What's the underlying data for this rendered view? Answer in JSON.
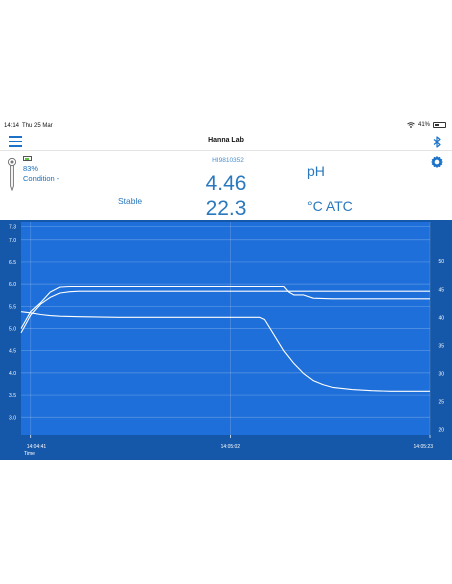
{
  "status_bar": {
    "time": "14:14",
    "date": "Thu 25 Mar",
    "battery": "41%",
    "battery_level": 0.41
  },
  "nav": {
    "title": "Hanna Lab",
    "menu_icon": "hamburger-menu-icon",
    "bluetooth_icon": "bluetooth-icon"
  },
  "probe": {
    "percent": "83%",
    "condition": "Condition -",
    "battery_level": 0.83,
    "battery_color": "#5ac43a"
  },
  "device_id": "HI9810352",
  "reading": {
    "value": "4.46",
    "unit": "pH",
    "stability": "Stable"
  },
  "temperature": {
    "value": "22.3",
    "unit": "°C ATC"
  },
  "colors": {
    "accent": "#2a78be",
    "chart_bg": "#1e6fd9",
    "chart_frame": "#1557a8"
  },
  "chart_data": {
    "type": "line",
    "xlabel": "Time",
    "x_ticks": [
      "14:04:41",
      "14:05:02",
      "14:05:23"
    ],
    "x_range": [
      0,
      42
    ],
    "y_left": {
      "range": [
        2.6,
        7.4
      ],
      "ticks": [
        "7.3",
        "7.0",
        "6.5",
        "6.0",
        "5.5",
        "5.0",
        "4.5",
        "4.0",
        "3.5",
        "3.0",
        "2.5"
      ]
    },
    "y_right": {
      "range": [
        19,
        57
      ],
      "ticks": [
        "50",
        "45",
        "40",
        "35",
        "30",
        "25",
        "20"
      ]
    },
    "grid": true,
    "series": [
      {
        "axis": "left",
        "x": [
          0,
          0.5,
          1,
          2,
          3,
          4,
          5,
          6,
          8,
          12,
          16,
          20,
          24,
          28,
          32,
          36,
          38,
          40,
          42
        ],
        "y": [
          4.9,
          5.1,
          5.3,
          5.55,
          5.7,
          5.8,
          5.83,
          5.84,
          5.84,
          5.84,
          5.84,
          5.84,
          5.84,
          5.84,
          5.84,
          5.84,
          5.84,
          5.84,
          5.84
        ]
      },
      {
        "axis": "right",
        "x": [
          0,
          0.5,
          1,
          2,
          3,
          4,
          5,
          6,
          8,
          10,
          15,
          20,
          25,
          27,
          27.5,
          28,
          29,
          30,
          32,
          34,
          36,
          38,
          40,
          42
        ],
        "y": [
          38,
          39.5,
          41,
          42.6,
          44.5,
          45.4,
          45.5,
          45.5,
          45.5,
          45.5,
          45.5,
          45.5,
          45.5,
          45.5,
          44.5,
          44.0,
          44.0,
          43.4,
          43.3,
          43.3,
          43.3,
          43.3,
          43.3,
          43.3
        ]
      },
      {
        "axis": "right",
        "x": [
          0,
          1,
          2,
          3,
          4,
          6,
          10,
          15,
          20,
          24.5,
          25,
          26,
          27,
          28,
          29,
          30,
          31,
          32,
          34,
          36,
          38,
          40,
          42
        ],
        "y": [
          41.0,
          40.8,
          40.5,
          40.3,
          40.2,
          40.1,
          40.0,
          40.0,
          40.0,
          40.0,
          39.6,
          36.8,
          34.0,
          31.8,
          30.0,
          28.7,
          28.0,
          27.5,
          27.1,
          26.9,
          26.8,
          26.8,
          26.8
        ]
      }
    ]
  }
}
